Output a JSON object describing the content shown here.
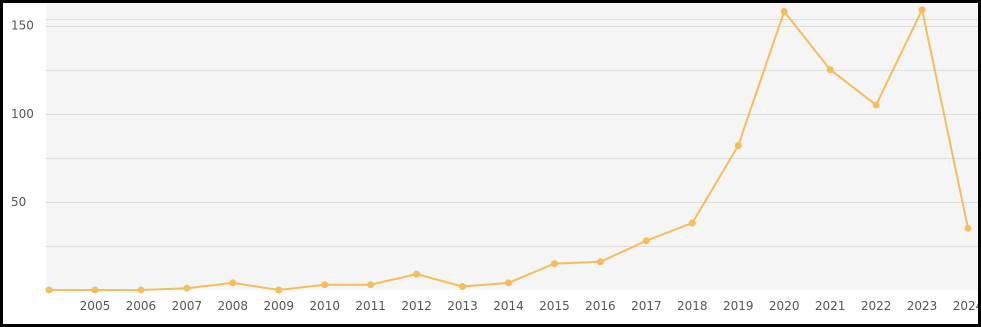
{
  "chart_data": {
    "type": "line",
    "title": "",
    "xlabel": "",
    "ylabel": "",
    "x": [
      "2004",
      "2005",
      "2006",
      "2007",
      "2008",
      "2009",
      "2010",
      "2011",
      "2012",
      "2013",
      "2014",
      "2015",
      "2016",
      "2017",
      "2018",
      "2019",
      "2020",
      "2021",
      "2022",
      "2023",
      "2024"
    ],
    "x_tick_labels": [
      "2005",
      "2006",
      "2007",
      "2008",
      "2009",
      "2010",
      "2011",
      "2012",
      "2013",
      "2014",
      "2015",
      "2016",
      "2017",
      "2018",
      "2019",
      "2020",
      "2021",
      "2022",
      "2023",
      "2024"
    ],
    "series": [
      {
        "values": [
          0,
          0,
          0,
          1,
          4,
          0,
          3,
          3,
          9,
          2,
          4,
          15,
          16,
          28,
          38,
          82,
          158,
          125,
          105,
          159,
          35
        ]
      }
    ],
    "y_ticks": [
      50,
      100,
      150
    ],
    "ylim": [
      0,
      160
    ],
    "grid": true,
    "legend": "none",
    "colors": {
      "line": "#f5bd5c",
      "point": "#f5bd5c",
      "plot_background": "#f5f5f5",
      "gridline": "#dddddd",
      "frame": "#000000",
      "tick_text": "#555555"
    }
  }
}
